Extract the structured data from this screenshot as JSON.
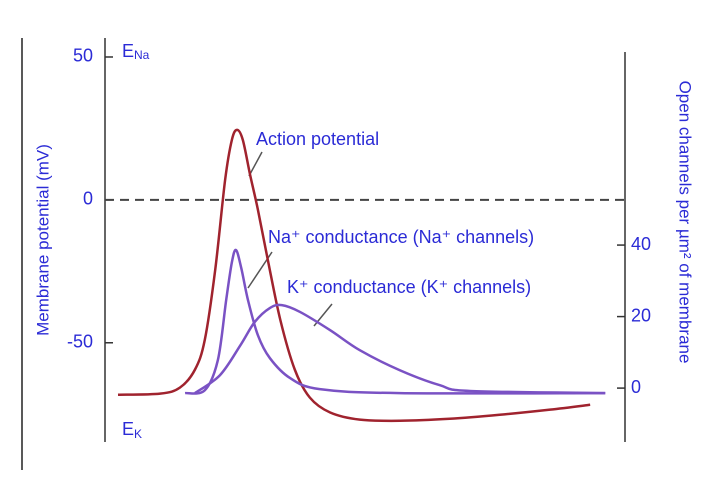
{
  "chart_data": {
    "type": "line",
    "ylabel": "Membrane potential (mV)",
    "y2label": "Open channels per µm² of membrane",
    "xlim": [
      0,
      100
    ],
    "ylim": [
      -80,
      55
    ],
    "yticks": [
      50,
      0,
      -50
    ],
    "y2lim": [
      -11.3,
      96.6
    ],
    "y2ticks": [
      40,
      20,
      0
    ],
    "hline": 0,
    "reversal_potentials": [
      {
        "main": "E",
        "sub": "Na"
      },
      {
        "main": "E",
        "sub": "K"
      }
    ],
    "annotations": [
      "Action potential",
      "Na⁺ conductance (Na⁺ channels)",
      "K⁺ conductance (K⁺ channels)"
    ],
    "series": [
      {
        "name": "Action potential",
        "color": "#a0232e",
        "axis": "y",
        "x": [
          2.5,
          10.6,
          14.4,
          17.3,
          19.2,
          21.2,
          23.1,
          24.4,
          25.4,
          26.5,
          27.9,
          29.4,
          31.3,
          33.7,
          36.5,
          39.4,
          43.3,
          49.0,
          56.7,
          66.3,
          75.9,
          85.6,
          93.3
        ],
        "values": [
          -68.2,
          -67.8,
          -65.7,
          -59.4,
          -48.9,
          -24.4,
          7.0,
          21.0,
          24.5,
          21.0,
          8.8,
          -3.4,
          -20.9,
          -41.9,
          -59.4,
          -69.2,
          -74.4,
          -76.9,
          -77.3,
          -76.6,
          -75.2,
          -73.4,
          -71.7
        ]
      },
      {
        "name": "Na⁺ conductance (Na⁺ channels)",
        "color": "#7a52c4",
        "axis": "y2",
        "x": [
          15.4,
          19.2,
          21.7,
          23.3,
          24.4,
          25.2,
          26.2,
          27.5,
          29.4,
          31.7,
          35.6,
          41.3,
          56.7,
          96.2
        ],
        "values": [
          -1.4,
          -0.6,
          7.8,
          24.6,
          35.2,
          38.6,
          33.6,
          24.6,
          14.8,
          8.4,
          2.8,
          -0.3,
          -1.4,
          -1.4
        ]
      },
      {
        "name": "K⁺ conductance (K⁺ channels)",
        "color": "#7a52c4",
        "axis": "y2",
        "x": [
          17.3,
          22.1,
          26.0,
          28.8,
          31.7,
          34.0,
          37.5,
          43.3,
          49.0,
          56.7,
          64.4,
          70.2,
          96.2
        ],
        "values": [
          -1.4,
          3.6,
          11.9,
          18.5,
          22.4,
          23.2,
          21.3,
          16.2,
          10.6,
          5.0,
          0.8,
          -0.8,
          -1.4
        ]
      }
    ]
  }
}
